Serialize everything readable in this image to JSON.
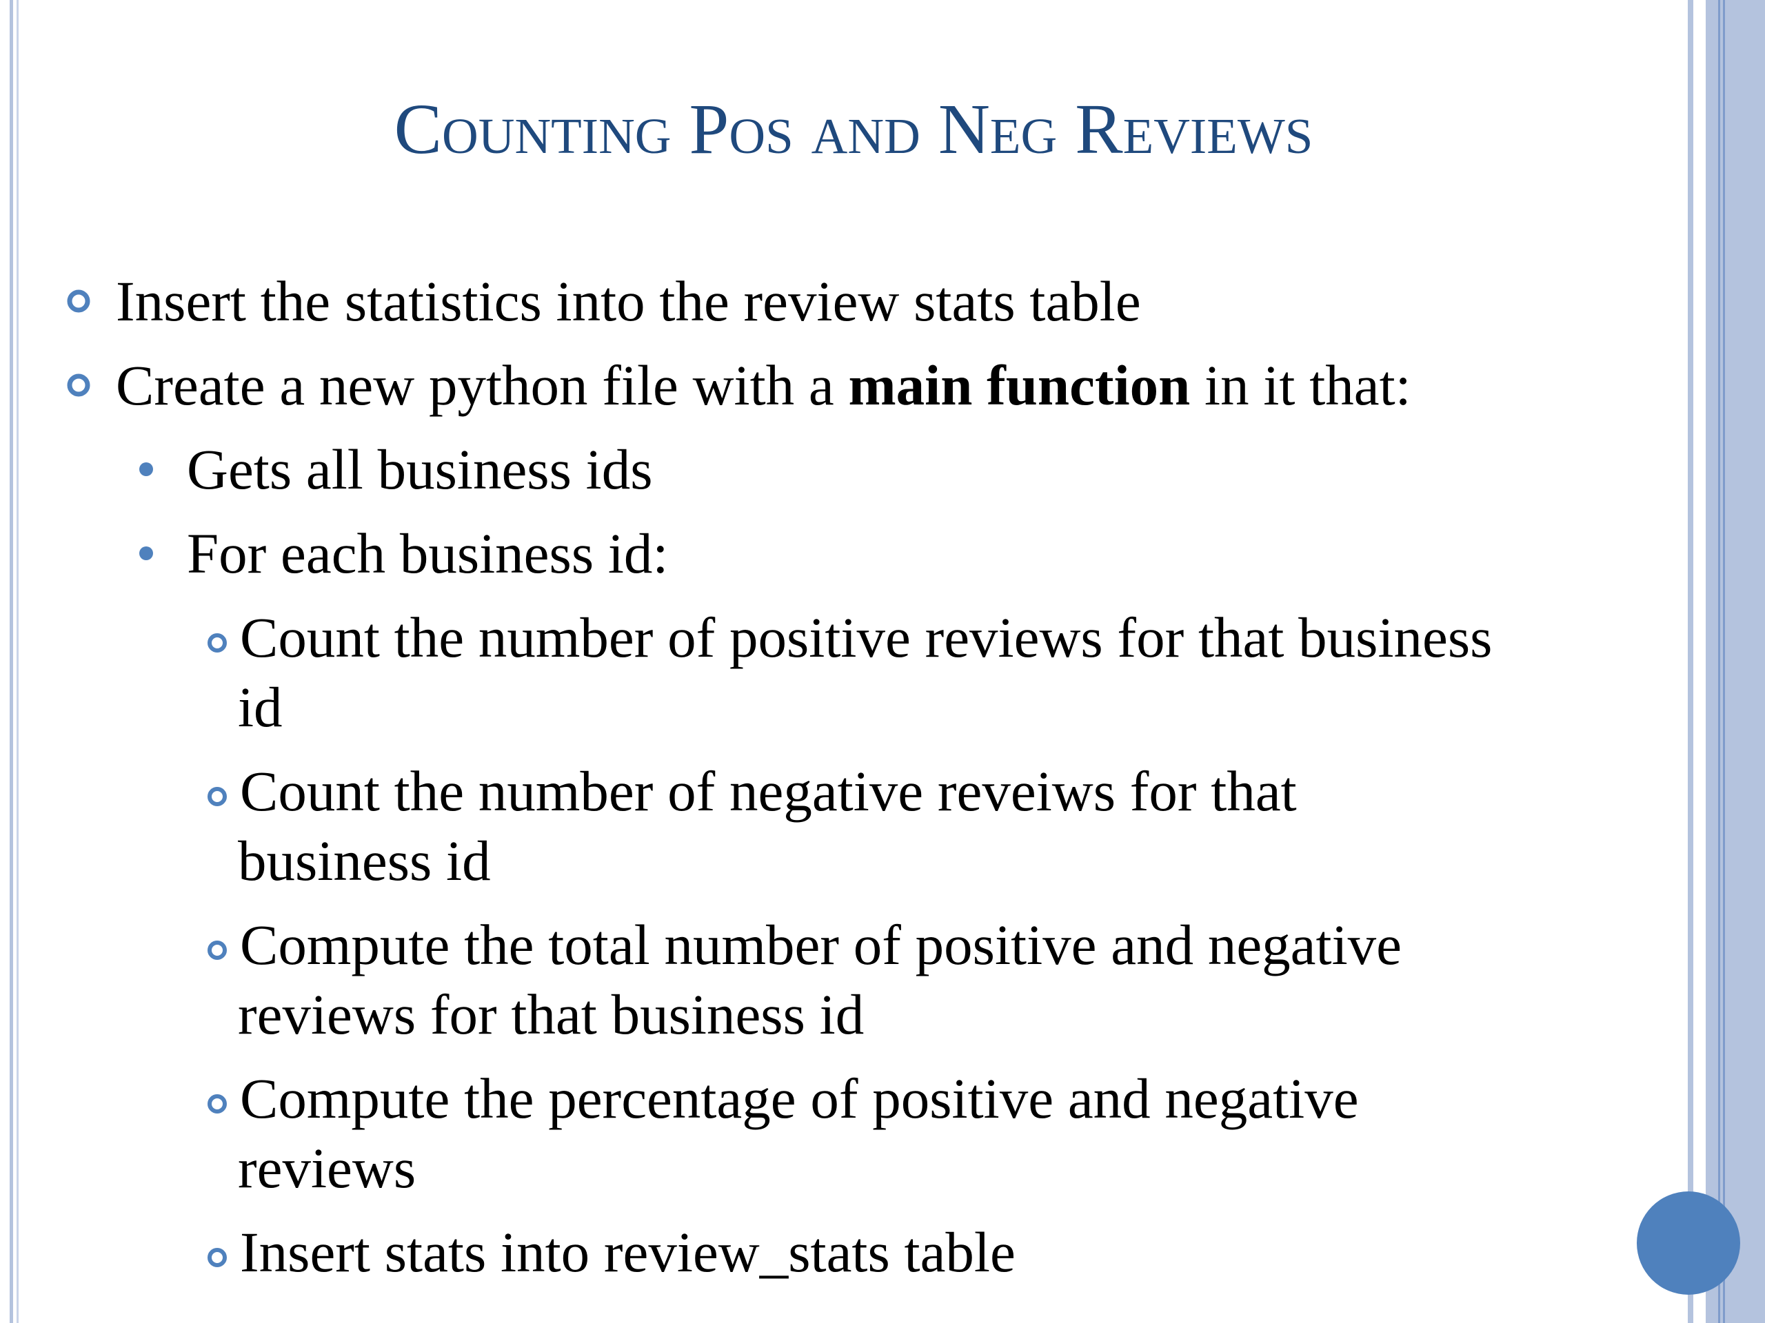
{
  "title": "Counting Pos and Neg Reviews",
  "bullets": [
    {
      "text": "Insert the statistics into the review stats table"
    },
    {
      "runs": [
        {
          "text": "Create a new python file with a "
        },
        {
          "text": "main function",
          "bold": true
        },
        {
          "text": " in it that:"
        }
      ],
      "items": [
        {
          "text": "Gets all business ids"
        },
        {
          "text": "For each business id:",
          "items": [
            {
              "lines": [
                "Count the number of positive reviews for that business",
                "id"
              ]
            },
            {
              "lines": [
                "Count the number of negative reveiws for that",
                "business id"
              ]
            },
            {
              "lines": [
                "Compute the total number of positive and negative",
                "reviews for that business id"
              ]
            },
            {
              "lines": [
                "Compute the percentage of positive and negative",
                "reviews"
              ]
            },
            {
              "lines": [
                "Insert stats into review_stats table"
              ]
            }
          ]
        }
      ]
    }
  ]
}
